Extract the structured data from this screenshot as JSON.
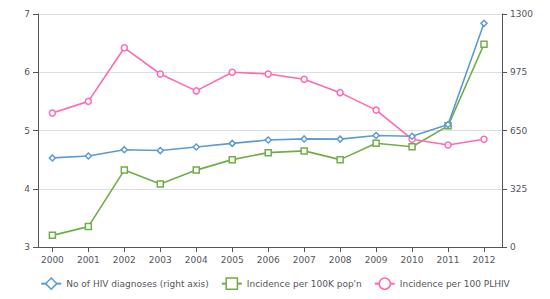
{
  "chart_data": {
    "type": "line",
    "x": [
      2000,
      2001,
      2002,
      2003,
      2004,
      2005,
      2006,
      2007,
      2008,
      2009,
      2010,
      2011,
      2012
    ],
    "xlim": [
      1999.6,
      2012.5
    ],
    "xticks": [
      2000,
      2001,
      2002,
      2003,
      2004,
      2005,
      2006,
      2007,
      2008,
      2009,
      2010,
      2011,
      2012
    ],
    "ylim": [
      3,
      7
    ],
    "yticks": [
      3,
      4,
      5,
      6,
      7
    ],
    "y2lim": [
      0,
      1300
    ],
    "y2ticks": [
      0,
      325,
      650,
      975,
      1300
    ],
    "grid": true,
    "legend": "bottom",
    "series": [
      {
        "name": "No of HIV diagnoses (right axis)",
        "axis": "y2",
        "color": "#5B9BD5",
        "marker": "diamond",
        "values": [
          497,
          508,
          543,
          538,
          558,
          578,
          597,
          603,
          602,
          622,
          618,
          683,
          1248
        ]
      },
      {
        "name": "Incidence per 100K pop'n",
        "color": "#70AD47",
        "marker": "square",
        "values": [
          3.2,
          3.35,
          4.32,
          4.08,
          4.32,
          4.5,
          4.62,
          4.65,
          4.5,
          4.78,
          4.72,
          5.08,
          6.48
        ]
      },
      {
        "name": "Incidence per 100 PLHIV",
        "color": "#FF69B4",
        "marker": "circle",
        "values": [
          5.3,
          5.5,
          6.42,
          5.97,
          5.68,
          6.0,
          5.97,
          5.88,
          5.65,
          5.35,
          4.85,
          4.75,
          4.85
        ]
      }
    ]
  }
}
